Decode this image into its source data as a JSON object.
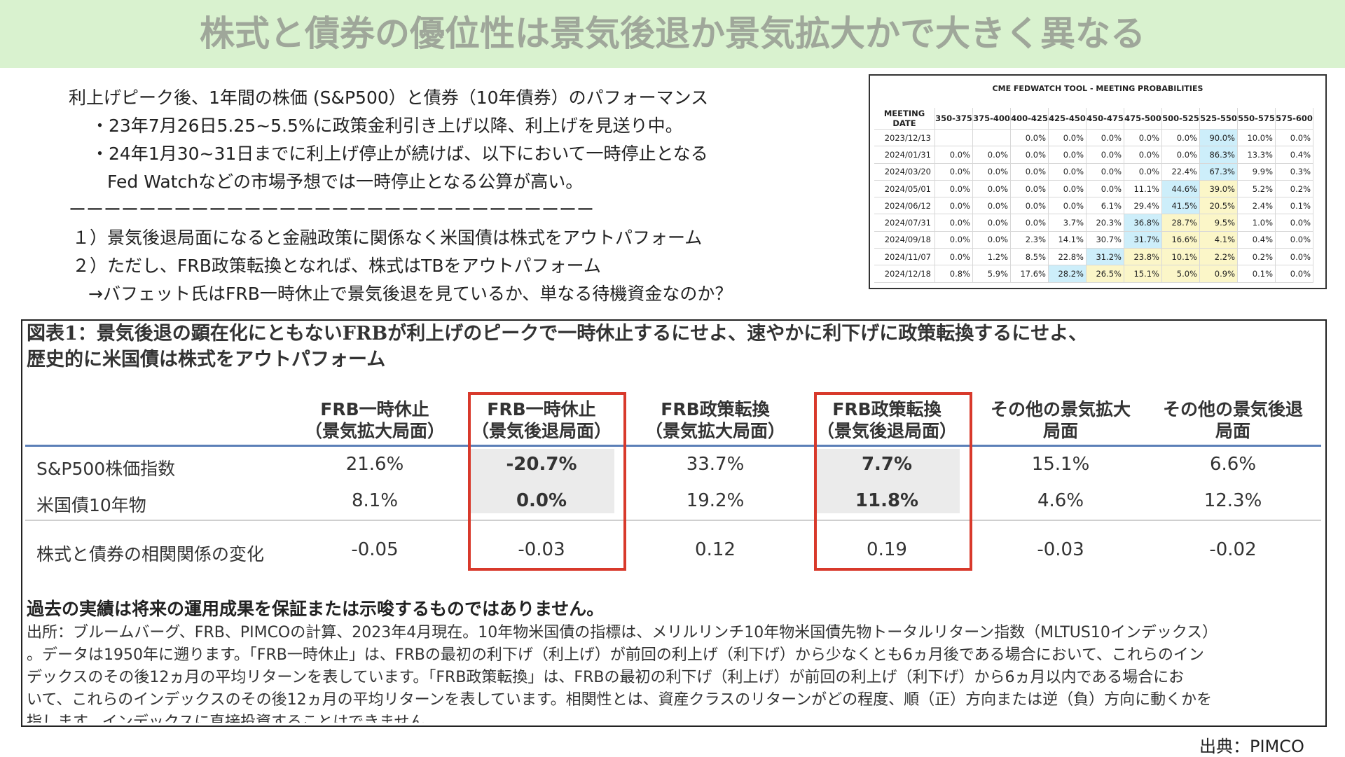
{
  "slide": {
    "title": "株式と債券の優位性は景気後退か景気拡大かで大きく異なる",
    "credit": "出典：PIMCO"
  },
  "intro": {
    "line1": "利上げピーク後、1年間の株価 (S&P500）と債券（10年債券）のパフォーマンス",
    "line2": "・23年7月26日5.25~5.5%に政策金利引き上げ以降、利上げを見送り中。",
    "line3": "・24年1月30~31日までに利上げ停止が続けば、以下において一時停止となる",
    "line4": "Fed Watchなどの市場予想では一時停止となる公算が高い。",
    "divider": "ーーーーーーーーーーーーーーーーーーーーーーーーーーーーーー",
    "point1": "１）景気後退局面になると金融政策に関係なく米国債は株式をアウトパフォーム",
    "point2": "２）ただし、FRB政策転換となれば、株式はTBをアウトパフォーム",
    "point3": "→バフェット氏はFRB一時休止で景気後退を見ているか、単なる待機資金なのか？"
  },
  "fedwatch": {
    "title": "CME FEDWATCH TOOL - MEETING PROBABILITIES",
    "headers": [
      "MEETING DATE",
      "350-375",
      "375-400",
      "400-425",
      "425-450",
      "450-475",
      "475-500",
      "500-525",
      "525-550",
      "550-575",
      "575-600"
    ],
    "rows": [
      {
        "date": "2023/12/13",
        "cells": [
          "",
          "",
          "0.0%",
          "0.0%",
          "0.0%",
          "0.0%",
          "0.0%",
          "90.0%",
          "10.0%",
          "0.0%"
        ],
        "hl": [
          "",
          "",
          "",
          "",
          "",
          "",
          "",
          "b",
          "",
          ""
        ]
      },
      {
        "date": "2024/01/31",
        "cells": [
          "0.0%",
          "0.0%",
          "0.0%",
          "0.0%",
          "0.0%",
          "0.0%",
          "0.0%",
          "86.3%",
          "13.3%",
          "0.4%"
        ],
        "hl": [
          "",
          "",
          "",
          "",
          "",
          "",
          "",
          "b",
          "",
          ""
        ]
      },
      {
        "date": "2024/03/20",
        "cells": [
          "0.0%",
          "0.0%",
          "0.0%",
          "0.0%",
          "0.0%",
          "0.0%",
          "22.4%",
          "67.3%",
          "9.9%",
          "0.3%"
        ],
        "hl": [
          "",
          "",
          "",
          "",
          "",
          "",
          "",
          "b",
          "",
          ""
        ]
      },
      {
        "date": "2024/05/01",
        "cells": [
          "0.0%",
          "0.0%",
          "0.0%",
          "0.0%",
          "0.0%",
          "11.1%",
          "44.6%",
          "39.0%",
          "5.2%",
          "0.2%"
        ],
        "hl": [
          "",
          "",
          "",
          "",
          "",
          "",
          "b",
          "y",
          "",
          ""
        ]
      },
      {
        "date": "2024/06/12",
        "cells": [
          "0.0%",
          "0.0%",
          "0.0%",
          "0.0%",
          "6.1%",
          "29.4%",
          "41.5%",
          "20.5%",
          "2.4%",
          "0.1%"
        ],
        "hl": [
          "",
          "",
          "",
          "",
          "",
          "",
          "b",
          "y",
          "",
          ""
        ]
      },
      {
        "date": "2024/07/31",
        "cells": [
          "0.0%",
          "0.0%",
          "0.0%",
          "3.7%",
          "20.3%",
          "36.8%",
          "28.7%",
          "9.5%",
          "1.0%",
          "0.0%"
        ],
        "hl": [
          "",
          "",
          "",
          "",
          "",
          "b",
          "y",
          "y",
          "",
          ""
        ]
      },
      {
        "date": "2024/09/18",
        "cells": [
          "0.0%",
          "0.0%",
          "2.3%",
          "14.1%",
          "30.7%",
          "31.7%",
          "16.6%",
          "4.1%",
          "0.4%",
          "0.0%"
        ],
        "hl": [
          "",
          "",
          "",
          "",
          "",
          "b",
          "y",
          "y",
          "",
          ""
        ]
      },
      {
        "date": "2024/11/07",
        "cells": [
          "0.0%",
          "1.2%",
          "8.5%",
          "22.8%",
          "31.2%",
          "23.8%",
          "10.1%",
          "2.2%",
          "0.2%",
          "0.0%"
        ],
        "hl": [
          "",
          "",
          "",
          "",
          "b",
          "y",
          "y",
          "y",
          "",
          ""
        ]
      },
      {
        "date": "2024/12/18",
        "cells": [
          "0.8%",
          "5.9%",
          "17.6%",
          "28.2%",
          "26.5%",
          "15.1%",
          "5.0%",
          "0.9%",
          "0.1%",
          "0.0%"
        ],
        "hl": [
          "",
          "",
          "",
          "b",
          "y",
          "y",
          "y",
          "y",
          "",
          ""
        ]
      }
    ]
  },
  "figure": {
    "title_line1": "図表1：景気後退の顕在化にともないFRBが利上げのピークで一時休止するにせよ、速やかに利下げに政策転換するにせよ、",
    "title_line2": "歴史的に米国債は株式をアウトパフォーム",
    "columns": [
      {
        "l1": "FRB一時休止",
        "l2": "（景気拡大局面）"
      },
      {
        "l1": "FRB一時休止",
        "l2": "（景気後退局面）"
      },
      {
        "l1": "FRB政策転換",
        "l2": "（景気拡大局面）"
      },
      {
        "l1": "FRB政策転換",
        "l2": "（景気後退局面）"
      },
      {
        "l1": "その他の景気拡大",
        "l2": "局面"
      },
      {
        "l1": "その他の景気後退",
        "l2": "局面"
      }
    ],
    "rows": [
      {
        "label": "S&P500株価指数",
        "values": [
          "21.6%",
          "-20.7%",
          "33.7%",
          "7.7%",
          "15.1%",
          "6.6%"
        ]
      },
      {
        "label": "米国債10年物",
        "values": [
          "8.1%",
          "0.0%",
          "19.2%",
          "11.8%",
          "4.6%",
          "12.3%"
        ]
      },
      {
        "label": "株式と債券の相関関係の変化",
        "values": [
          "-0.05",
          "-0.03",
          "0.12",
          "0.19",
          "-0.03",
          "-0.02"
        ]
      }
    ],
    "disclaimer": "過去の実績は将来の運用成果を保証または示唆するものではありません。",
    "source_lines": [
      "出所：ブルームバーグ、FRB、PIMCOの計算、2023年4月現在。10年物米国債の指標は、メリルリンチ10年物米国債先物トータルリターン指数（MLTUS10インデックス）",
      "。データは1950年に遡ります。「FRB一時休止」は、FRBの最初の利下げ（利上げ）が前回の利上げ（利下げ）から少なくとも6ヵ月後である場合において、これらのイン",
      "デックスのその後12ヵ月の平均リターンを表しています。「FRB政策転換」は、FRBの最初の利下げ（利上げ）が前回の利上げ（利下げ）から6ヵ月以内である場合にお",
      "いて、これらのインデックスのその後12ヵ月の平均リターンを表しています。相関性とは、資産クラスのリターンがどの程度、順（正）方向または逆（負）方向に動くかを",
      "指します。インデックスに直接投資することはできません。"
    ]
  },
  "colors": {
    "title_band": "#d9f2cf",
    "title_text": "#9fa79a",
    "highlight_box": "#d8392b",
    "header_rule": "#5b7fb7",
    "fed_blue": "#cdeefa",
    "fed_yellow": "#fbf6c8"
  }
}
